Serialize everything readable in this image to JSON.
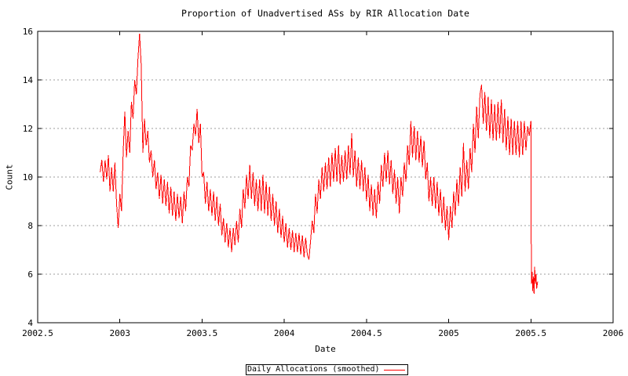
{
  "colors": {
    "line": "#ff0000",
    "grid": "#9e9e9e",
    "axis": "#000000",
    "background": "#ffffff",
    "text": "#000000"
  },
  "chart_data": {
    "type": "line",
    "title": "Proportion of Unadvertised ASs by RIR Allocation Date",
    "xlabel": "Date",
    "ylabel": "Count",
    "xlim": [
      2002.5,
      2006
    ],
    "ylim": [
      4,
      16
    ],
    "x_ticks": [
      2002.5,
      2003,
      2003.5,
      2004,
      2004.5,
      2005,
      2005.5,
      2006
    ],
    "x_tick_labels": [
      "2002.5",
      "2003",
      "2003.5",
      "2004",
      "2004.5",
      "2005",
      "2005.5",
      "2006"
    ],
    "y_ticks": [
      4,
      6,
      8,
      10,
      12,
      14,
      16
    ],
    "y_tick_labels": [
      "4",
      "6",
      "8",
      "10",
      "12",
      "14",
      "16"
    ],
    "grid": "horizontal-dashed",
    "legend_position": "bottom-center-outside",
    "series": [
      {
        "name": "Daily Allocations (smoothed)",
        "color": "#ff0000",
        "x_start": 2002.88,
        "x_step": 0.01,
        "values": [
          10.2,
          10.7,
          9.8,
          10.7,
          9.9,
          10.9,
          9.4,
          10.4,
          9.4,
          10.6,
          8.9,
          7.9,
          9.3,
          8.6,
          11.0,
          12.7,
          10.8,
          11.9,
          11.0,
          13.1,
          12.4,
          14.0,
          13.4,
          14.9,
          15.9,
          14.6,
          11.0,
          12.4,
          11.3,
          11.9,
          10.6,
          11.1,
          10.0,
          10.7,
          9.5,
          10.2,
          9.1,
          10.1,
          8.9,
          9.9,
          8.8,
          9.8,
          8.5,
          9.6,
          8.4,
          9.4,
          8.2,
          9.3,
          8.3,
          9.2,
          8.1,
          9.4,
          8.6,
          10.0,
          9.6,
          11.3,
          11.1,
          12.2,
          11.7,
          12.8,
          11.4,
          12.2,
          10.0,
          10.2,
          8.9,
          9.8,
          8.6,
          9.5,
          8.4,
          9.4,
          8.2,
          9.2,
          8.0,
          8.9,
          7.6,
          8.3,
          7.3,
          8.1,
          7.1,
          7.9,
          6.9,
          7.9,
          7.2,
          8.2,
          7.3,
          8.7,
          7.9,
          9.5,
          8.7,
          10.1,
          9.1,
          10.5,
          9.1,
          10.2,
          8.8,
          9.9,
          8.6,
          9.9,
          8.6,
          10.1,
          8.5,
          9.8,
          8.4,
          9.6,
          8.2,
          9.3,
          8.0,
          9.0,
          7.7,
          8.7,
          7.5,
          8.4,
          7.3,
          8.1,
          7.1,
          7.9,
          7.0,
          7.8,
          6.9,
          7.7,
          6.9,
          7.7,
          6.8,
          7.6,
          6.7,
          7.5,
          6.8,
          6.6,
          7.4,
          8.2,
          7.7,
          9.3,
          8.5,
          9.9,
          9.1,
          10.4,
          9.4,
          10.6,
          9.5,
          10.8,
          9.6,
          11.0,
          9.8,
          11.2,
          9.8,
          11.3,
          9.7,
          10.9,
          9.8,
          11.1,
          9.9,
          11.3,
          10.1,
          11.8,
          10.0,
          11.1,
          9.6,
          10.8,
          9.5,
          10.7,
          9.4,
          10.4,
          9.0,
          10.1,
          8.6,
          9.7,
          8.4,
          9.5,
          8.3,
          9.8,
          8.9,
          10.5,
          9.6,
          11.0,
          9.8,
          11.1,
          9.7,
          10.7,
          9.3,
          10.3,
          8.9,
          10.0,
          8.5,
          10.0,
          9.2,
          10.6,
          9.8,
          11.3,
          10.5,
          12.3,
          10.8,
          12.1,
          10.7,
          11.9,
          10.6,
          11.7,
          10.4,
          11.5,
          9.9,
          10.6,
          9.0,
          10.0,
          8.8,
          10.0,
          8.7,
          9.8,
          8.4,
          9.5,
          8.1,
          9.2,
          7.8,
          8.8,
          7.4,
          8.8,
          7.9,
          9.4,
          8.4,
          9.9,
          8.8,
          10.4,
          9.2,
          11.4,
          9.4,
          10.7,
          9.5,
          11.2,
          10.2,
          12.2,
          11.0,
          12.9,
          11.6,
          13.4,
          13.8,
          12.2,
          13.5,
          11.9,
          13.3,
          11.6,
          13.2,
          11.5,
          13.0,
          11.5,
          13.1,
          11.6,
          13.2,
          11.4,
          12.8,
          11.1,
          12.5,
          10.9,
          12.4,
          10.9,
          12.3,
          10.9,
          12.3,
          10.8,
          12.3,
          10.9,
          12.3,
          11.1,
          12.1,
          11.7,
          12.3
        ],
        "tail_points": [
          [
            2005.503,
            5.6
          ],
          [
            2005.507,
            6.1
          ],
          [
            2005.511,
            5.3
          ],
          [
            2005.515,
            5.9
          ],
          [
            2005.519,
            5.2
          ],
          [
            2005.523,
            6.3
          ],
          [
            2005.527,
            5.6
          ],
          [
            2005.531,
            6.0
          ],
          [
            2005.535,
            5.4
          ],
          [
            2005.541,
            5.7
          ]
        ]
      }
    ]
  }
}
